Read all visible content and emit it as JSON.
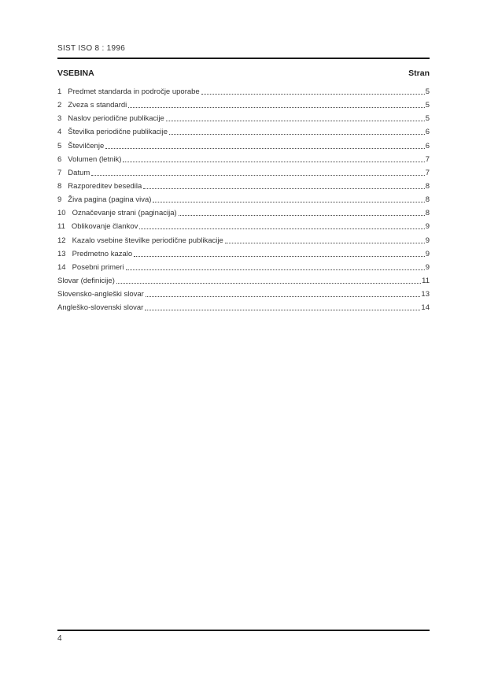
{
  "document": {
    "header_title": "SIST ISO 8 : 1996",
    "footer_page_number": "4"
  },
  "toc": {
    "heading": "VSEBINA",
    "page_column_label": "Stran",
    "entries": [
      {
        "number": "1",
        "title": "Predmet standarda in področje uporabe",
        "page": "5"
      },
      {
        "number": "2",
        "title": "Zveza s standardi",
        "page": "5"
      },
      {
        "number": "3",
        "title": "Naslov periodične publikacije",
        "page": "5"
      },
      {
        "number": "4",
        "title": "Številka periodične publikacije",
        "page": "6"
      },
      {
        "number": "5",
        "title": "Številčenje",
        "page": "6"
      },
      {
        "number": "6",
        "title": "Volumen (letnik)",
        "page": "7"
      },
      {
        "number": "7",
        "title": "Datum",
        "page": "7"
      },
      {
        "number": "8",
        "title": "Razporeditev besedila",
        "page": "8"
      },
      {
        "number": "9",
        "title": "Živa pagina (pagina viva)",
        "page": "8"
      },
      {
        "number": "10",
        "title": "Označevanje strani (paginacija)",
        "page": "8"
      },
      {
        "number": "11",
        "title": "Oblikovanje člankov",
        "page": "9"
      },
      {
        "number": "12",
        "title": "Kazalo vsebine številke periodične publikacije",
        "page": "9"
      },
      {
        "number": "13",
        "title": "Predmetno kazalo",
        "page": "9"
      },
      {
        "number": "14",
        "title": "Posebni primeri",
        "page": "9"
      },
      {
        "number": "",
        "title": "Slovar (definicije)",
        "page": "11"
      },
      {
        "number": "",
        "title": "Slovensko-angleški slovar",
        "page": "13"
      },
      {
        "number": "",
        "title": "Angleško-slovenski slovar",
        "page": "14"
      }
    ]
  },
  "colors": {
    "page_background": "#ffffff",
    "text": "#333333",
    "heading_text": "#1f1f1f",
    "rule": "#1a1a1a",
    "leader_dots": "#4a4a4a"
  }
}
